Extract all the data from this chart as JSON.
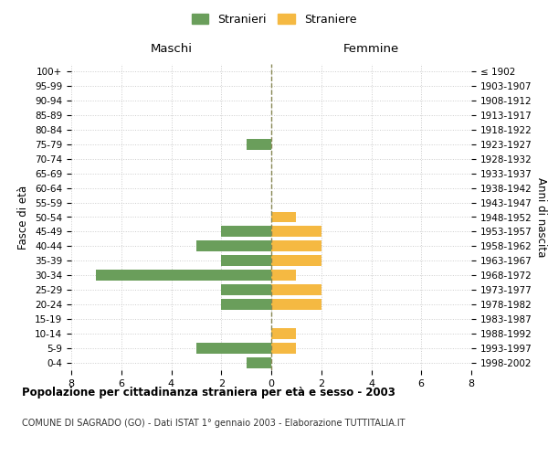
{
  "age_groups": [
    "0-4",
    "5-9",
    "10-14",
    "15-19",
    "20-24",
    "25-29",
    "30-34",
    "35-39",
    "40-44",
    "45-49",
    "50-54",
    "55-59",
    "60-64",
    "65-69",
    "70-74",
    "75-79",
    "80-84",
    "85-89",
    "90-94",
    "95-99",
    "100+"
  ],
  "birth_years": [
    "1998-2002",
    "1993-1997",
    "1988-1992",
    "1983-1987",
    "1978-1982",
    "1973-1977",
    "1968-1972",
    "1963-1967",
    "1958-1962",
    "1953-1957",
    "1948-1952",
    "1943-1947",
    "1938-1942",
    "1933-1937",
    "1928-1932",
    "1923-1927",
    "1918-1922",
    "1913-1917",
    "1908-1912",
    "1903-1907",
    "≤ 1902"
  ],
  "males": [
    1,
    3,
    0,
    0,
    2,
    2,
    7,
    2,
    3,
    2,
    0,
    0,
    0,
    0,
    0,
    1,
    0,
    0,
    0,
    0,
    0
  ],
  "females": [
    0,
    1,
    1,
    0,
    2,
    2,
    1,
    2,
    2,
    2,
    1,
    0,
    0,
    0,
    0,
    0,
    0,
    0,
    0,
    0,
    0
  ],
  "male_color": "#6a9e5b",
  "female_color": "#f5b942",
  "center_line_color": "#888855",
  "xlim": 8,
  "title": "Popolazione per cittadinanza straniera per età e sesso - 2003",
  "subtitle": "COMUNE DI SAGRADO (GO) - Dati ISTAT 1° gennaio 2003 - Elaborazione TUTTITALIA.IT",
  "ylabel_left": "Fasce di età",
  "ylabel_right": "Anni di nascita",
  "legend_stranieri": "Stranieri",
  "legend_straniere": "Straniere",
  "maschi_label": "Maschi",
  "femmine_label": "Femmine",
  "bg_color": "#ffffff",
  "grid_color": "#cccccc",
  "bar_height": 0.75
}
